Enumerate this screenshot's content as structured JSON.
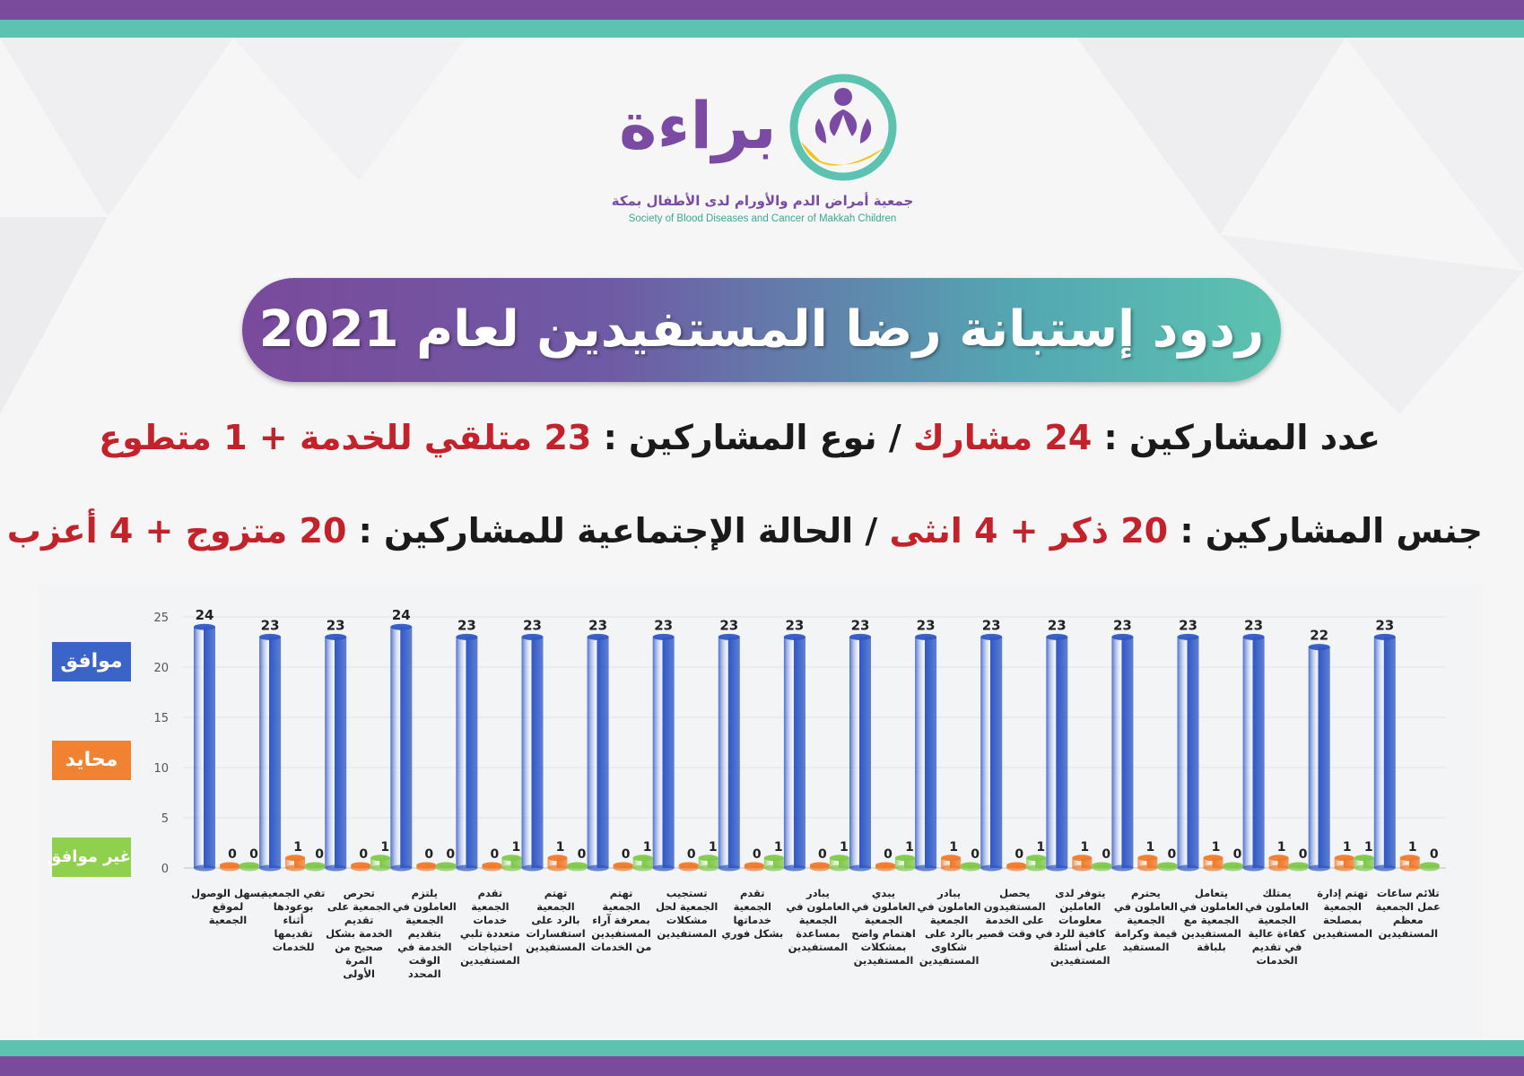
{
  "colors": {
    "purple": "#7a4a9c",
    "teal": "#5cc3b0",
    "agree": "#2f58c6",
    "neutral": "#f07a2a",
    "disagree": "#7fc94a",
    "red_text": "#c3222a"
  },
  "logo": {
    "wordmark": "براءة",
    "name_ar": "جمعية أمراض الدم والأورام لدى الأطفال بمكة",
    "name_en": "Society of Blood Diseases and Cancer of Makkah Children"
  },
  "title": "ردود إستبانة رضا المستفيدين لعام 2021",
  "info": {
    "line1_label_a": "عدد المشاركين :",
    "line1_value_a": "24 مشارك",
    "line1_sep": " / ",
    "line1_label_b": "نوع المشاركين :",
    "line1_value_b": "23 متلقي للخدمة + 1 متطوع",
    "line2_label_a": "جنس المشاركين :",
    "line2_value_a": "20 ذكر + 4 انثى",
    "line2_sep": " / ",
    "line2_label_b": "الحالة الإجتماعية للمشاركين :",
    "line2_value_b": "20 متزوج + 4 أعزب"
  },
  "legend": {
    "agree": "موافق",
    "neutral": "محايد",
    "disagree": "غير موافق"
  },
  "chart_data": {
    "type": "bar",
    "ylim": [
      0,
      25
    ],
    "yticks": [
      0,
      5,
      10,
      15,
      20,
      25
    ],
    "grid": true,
    "legend_placement": "left",
    "categories": [
      "يسهل الوصول لموقع الجمعية",
      "تفي الجمعية بوعودها أثناء تقديمها للخدمات",
      "تحرص الجمعية على تقديم الخدمة بشكل صحيح من المرة الأولى",
      "يلتزم العاملون في الجمعية بتقديم الخدمة في الوقت المحدد",
      "تقدم الجمعية خدمات متعددة تلبي احتياجات المستفيدين",
      "تهتم الجمعية بالرد على استفسارات المستفيدين",
      "تهتم الجمعية بمعرفة آراء المستفيدين من الخدمات",
      "تستجيب الجمعية لحل مشكلات المستفيدين",
      "تقدم الجمعية خدماتها بشكل فوري",
      "يبادر العاملون في الجمعية بمساعدة المستفيدين",
      "يبدي العاملون في الجمعية اهتمام واضح بمشكلات المستفيدين",
      "يبادر العاملون في الجمعية بالرد على شكاوى المستفيدين",
      "يحصل المستفيدون على الخدمة في وقت قصير",
      "يتوفر لدى العاملين معلومات كافية للرد على أسئلة المستفيدين",
      "يحترم العاملون في الجمعية قيمة وكرامة المستفيد",
      "يتعامل العاملون في الجمعية مع المستفيدين بلباقة",
      "يمتلك العاملون في الجمعية كفاءة عالية في تقديم الخدمات",
      "تهتم إدارة الجمعية بمصلحة المستفيدين",
      "تلائم ساعات عمل الجمعية معظم المستفيدين"
    ],
    "series": [
      {
        "name": "موافق",
        "values": [
          24,
          23,
          23,
          24,
          23,
          23,
          23,
          23,
          23,
          23,
          23,
          23,
          23,
          23,
          23,
          23,
          23,
          22,
          23
        ]
      },
      {
        "name": "محايد",
        "values": [
          0,
          1,
          0,
          0,
          0,
          1,
          0,
          0,
          0,
          0,
          0,
          1,
          0,
          1,
          1,
          1,
          1,
          1,
          1
        ]
      },
      {
        "name": "غير موافق",
        "values": [
          0,
          0,
          1,
          0,
          1,
          0,
          1,
          1,
          1,
          1,
          1,
          0,
          1,
          0,
          0,
          0,
          0,
          1,
          0
        ]
      }
    ]
  }
}
